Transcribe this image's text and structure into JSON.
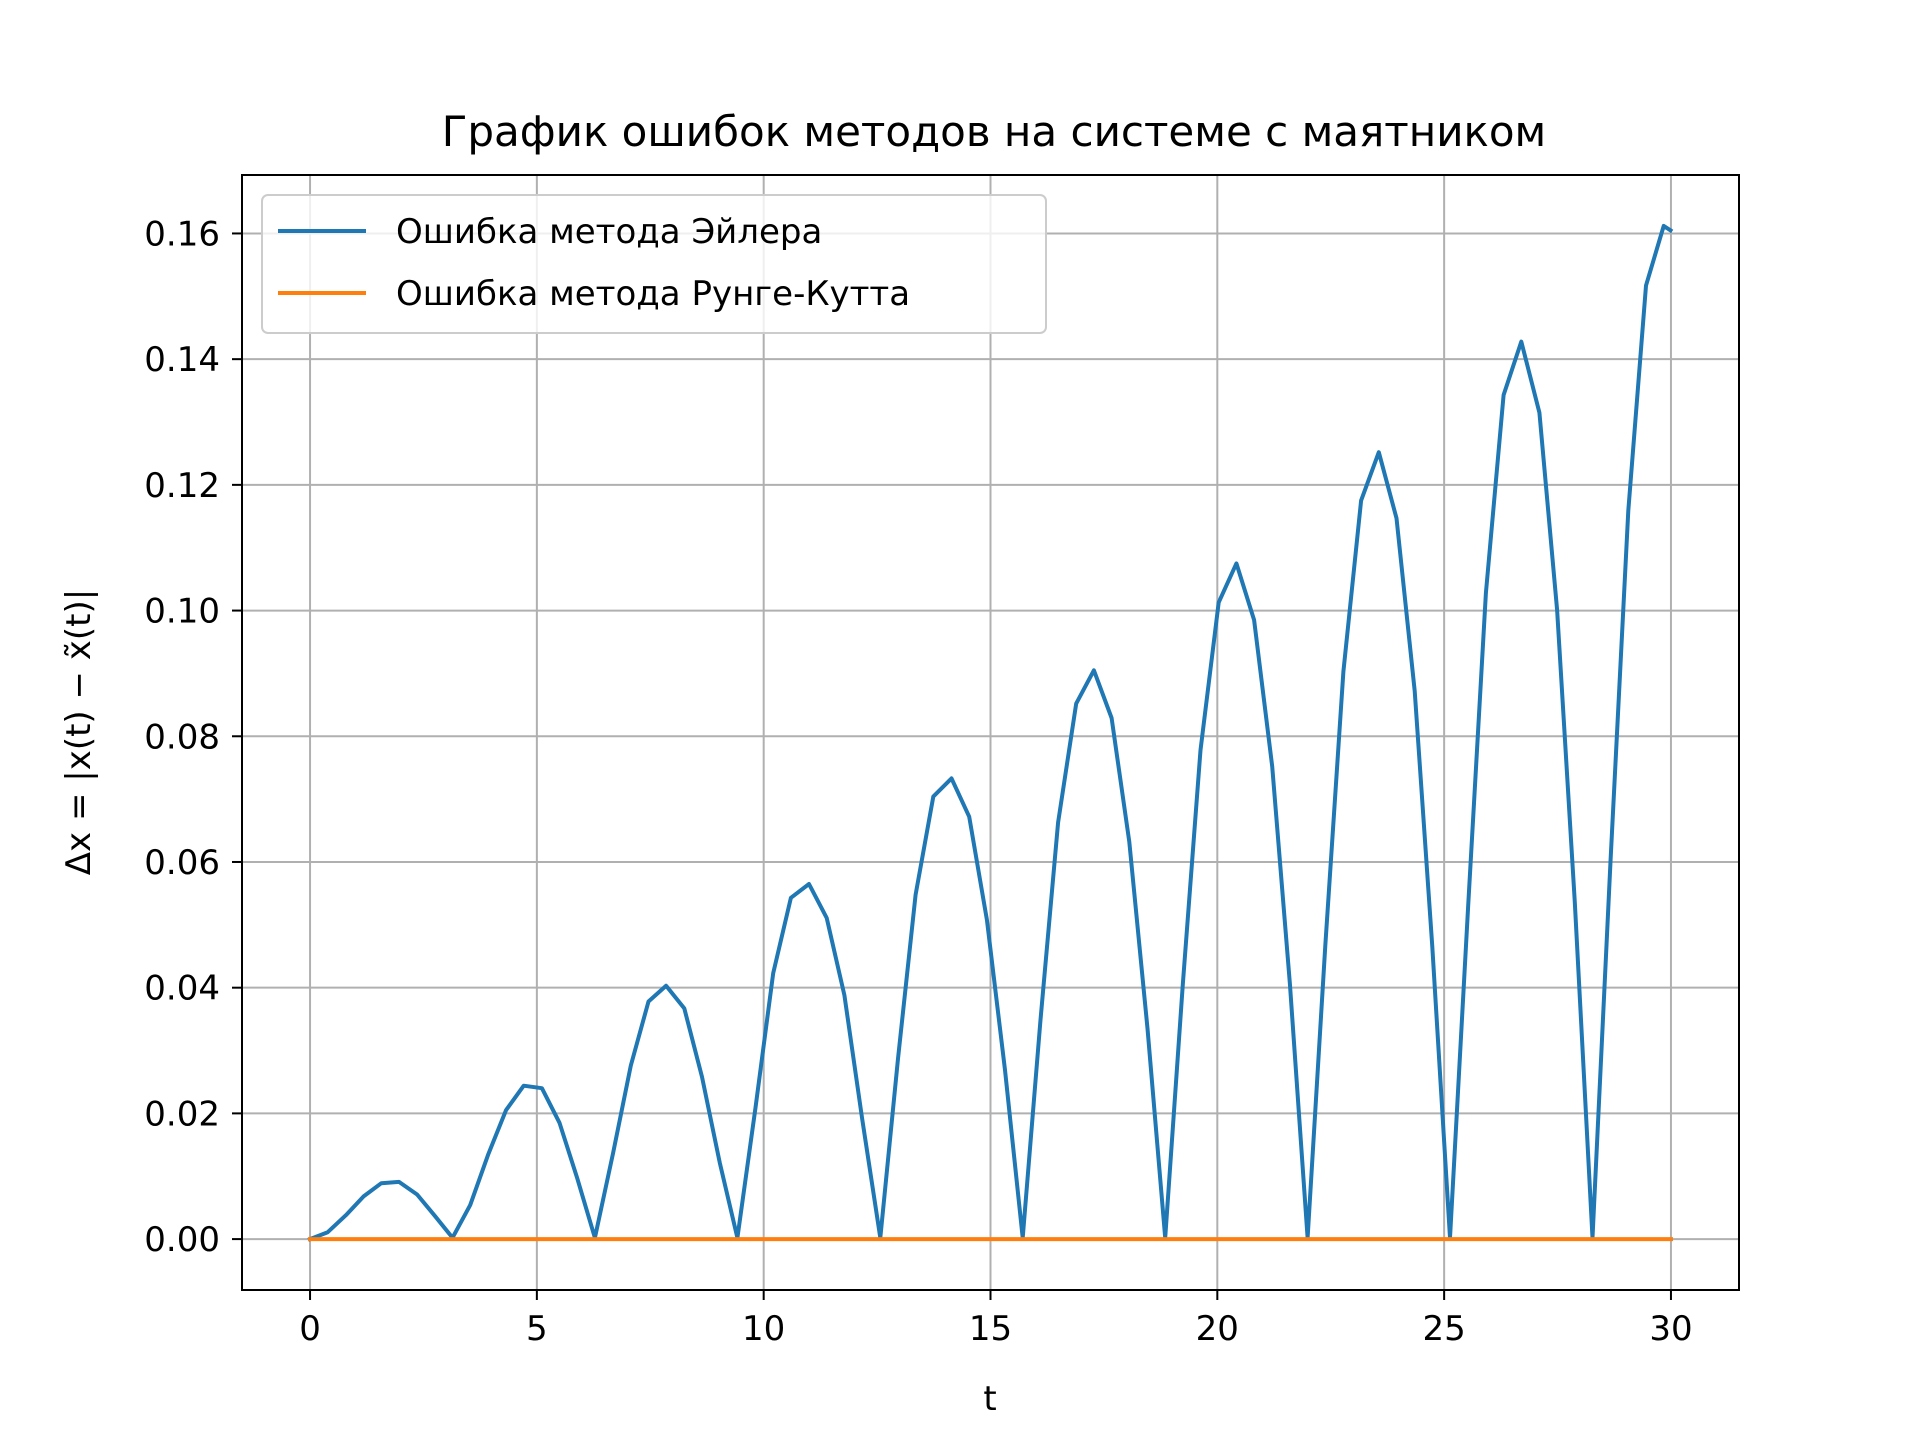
{
  "chart_data": {
    "type": "line",
    "title": "График ошибок методов на системе с маятником",
    "xlabel": "t",
    "ylabel": "Δx = |x(t) − x̃(t)|",
    "xlim": [
      -1.5,
      31.5
    ],
    "ylim": [
      -0.0081,
      0.1693
    ],
    "xticks": [
      "0",
      "5",
      "10",
      "15",
      "20",
      "25",
      "30"
    ],
    "yticks": [
      "0.00",
      "0.02",
      "0.04",
      "0.06",
      "0.08",
      "0.10",
      "0.12",
      "0.14",
      "0.16"
    ],
    "grid": true,
    "legend_position": "top-left",
    "series": [
      {
        "name": "Ошибка метода Эйлера",
        "color": "#1f77b4",
        "x": [
          0,
          0.39,
          0.79,
          1.18,
          1.57,
          1.96,
          2.36,
          2.75,
          3.14,
          3.53,
          3.93,
          4.32,
          4.71,
          5.11,
          5.5,
          5.89,
          6.28,
          6.68,
          7.07,
          7.46,
          7.85,
          8.25,
          8.64,
          9.03,
          9.42,
          9.82,
          10.21,
          10.6,
          11.0,
          11.39,
          11.78,
          12.17,
          12.57,
          12.96,
          13.35,
          13.74,
          14.14,
          14.53,
          14.92,
          15.32,
          15.71,
          16.1,
          16.49,
          16.89,
          17.28,
          17.67,
          18.06,
          18.46,
          18.85,
          19.24,
          19.63,
          20.03,
          20.42,
          20.81,
          21.21,
          21.6,
          21.99,
          22.38,
          22.78,
          23.17,
          23.56,
          23.95,
          24.35,
          24.74,
          25.13,
          25.53,
          25.92,
          26.31,
          26.7,
          27.1,
          27.49,
          27.88,
          28.27,
          28.67,
          29.06,
          29.45,
          29.84,
          29.99
        ],
        "y": [
          0,
          0.0011,
          0.0038,
          0.0068,
          0.0089,
          0.0091,
          0.0071,
          0.0037,
          0.0002,
          0.0054,
          0.0135,
          0.0205,
          0.0244,
          0.024,
          0.0185,
          0.0097,
          0.0002,
          0.0137,
          0.0276,
          0.0378,
          0.0403,
          0.0367,
          0.0258,
          0.0122,
          0.0002,
          0.0209,
          0.0423,
          0.0543,
          0.0565,
          0.0511,
          0.0388,
          0.0192,
          0.0002,
          0.0287,
          0.0548,
          0.0704,
          0.0733,
          0.0672,
          0.0508,
          0.0269,
          0.0002,
          0.0347,
          0.0663,
          0.0852,
          0.0905,
          0.0829,
          0.0632,
          0.0335,
          0.0002,
          0.0405,
          0.0778,
          0.1013,
          0.1075,
          0.0985,
          0.0752,
          0.0406,
          0.0002,
          0.0467,
          0.0903,
          0.1175,
          0.1252,
          0.1147,
          0.0872,
          0.0465,
          0.0002,
          0.0531,
          0.1028,
          0.1343,
          0.1428,
          0.1315,
          0.1001,
          0.0536,
          0.0002,
          0.0604,
          0.1159,
          0.1517,
          0.1612,
          0.1605
        ]
      },
      {
        "name": "Ошибка метода Рунге-Кутта",
        "color": "#ff7f0e",
        "x": [
          0,
          5,
          10,
          15,
          20,
          25,
          30
        ],
        "y": [
          0,
          0,
          0,
          0,
          0,
          0,
          0
        ]
      }
    ]
  }
}
